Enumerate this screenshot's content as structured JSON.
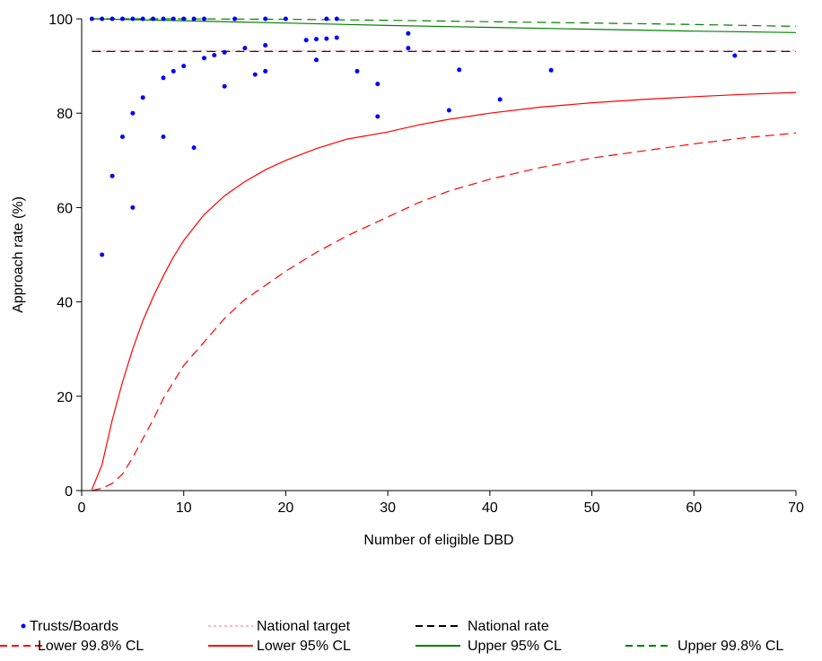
{
  "chart_data": {
    "type": "scatter",
    "xlabel": "Number of eligible DBD",
    "ylabel": "Approach rate (%)",
    "xlim": [
      0,
      70
    ],
    "ylim": [
      0,
      100
    ],
    "x_ticks": [
      0,
      10,
      20,
      30,
      40,
      50,
      60,
      70
    ],
    "y_ticks": [
      0,
      20,
      40,
      60,
      80,
      100
    ],
    "grid": false,
    "legend_position": "bottom",
    "points_series": {
      "name": "Trusts/Boards",
      "color": "#0000ff",
      "points": [
        {
          "x": 1,
          "y": 100
        },
        {
          "x": 2,
          "y": 100
        },
        {
          "x": 3,
          "y": 100
        },
        {
          "x": 4,
          "y": 100
        },
        {
          "x": 5,
          "y": 100
        },
        {
          "x": 6,
          "y": 100
        },
        {
          "x": 7,
          "y": 100
        },
        {
          "x": 8,
          "y": 100
        },
        {
          "x": 9,
          "y": 100
        },
        {
          "x": 10,
          "y": 100
        },
        {
          "x": 11,
          "y": 100
        },
        {
          "x": 12,
          "y": 100
        },
        {
          "x": 15,
          "y": 100
        },
        {
          "x": 18,
          "y": 100
        },
        {
          "x": 20,
          "y": 100
        },
        {
          "x": 24,
          "y": 100
        },
        {
          "x": 25,
          "y": 100
        },
        {
          "x": 2,
          "y": 50
        },
        {
          "x": 3,
          "y": 66.7
        },
        {
          "x": 4,
          "y": 75
        },
        {
          "x": 5,
          "y": 80
        },
        {
          "x": 5,
          "y": 60
        },
        {
          "x": 6,
          "y": 83.3
        },
        {
          "x": 8,
          "y": 87.5
        },
        {
          "x": 8,
          "y": 75
        },
        {
          "x": 9,
          "y": 88.9
        },
        {
          "x": 10,
          "y": 90
        },
        {
          "x": 11,
          "y": 72.7
        },
        {
          "x": 12,
          "y": 91.7
        },
        {
          "x": 13,
          "y": 92.3
        },
        {
          "x": 14,
          "y": 92.9
        },
        {
          "x": 14,
          "y": 85.7
        },
        {
          "x": 16,
          "y": 93.8
        },
        {
          "x": 17,
          "y": 88.2
        },
        {
          "x": 18,
          "y": 88.9
        },
        {
          "x": 18,
          "y": 94.4
        },
        {
          "x": 22,
          "y": 95.5
        },
        {
          "x": 23,
          "y": 95.7
        },
        {
          "x": 23,
          "y": 91.3
        },
        {
          "x": 24,
          "y": 95.8
        },
        {
          "x": 25,
          "y": 96
        },
        {
          "x": 27,
          "y": 88.9
        },
        {
          "x": 29,
          "y": 86.2
        },
        {
          "x": 29,
          "y": 79.3
        },
        {
          "x": 32,
          "y": 96.9
        },
        {
          "x": 32,
          "y": 93.8
        },
        {
          "x": 36,
          "y": 80.6
        },
        {
          "x": 37,
          "y": 89.2
        },
        {
          "x": 41,
          "y": 82.9
        },
        {
          "x": 46,
          "y": 89.1
        },
        {
          "x": 64,
          "y": 92.2
        }
      ]
    },
    "line_series": [
      {
        "name": "National target",
        "color": "#ffb6c1",
        "dash": "dotted",
        "x": [
          1,
          70
        ],
        "y": [
          93.3,
          93.3
        ]
      },
      {
        "name": "National rate",
        "color": "#000000",
        "dash": "dashed",
        "x": [
          1,
          70
        ],
        "y": [
          93.1,
          93.1
        ]
      },
      {
        "name": "Lower 95% CL",
        "color": "#ff0000",
        "dash": "solid",
        "x": [
          1,
          2,
          3,
          4,
          5,
          6,
          7,
          8,
          9,
          10,
          12,
          14,
          16,
          18,
          20,
          23,
          26,
          30,
          33,
          36,
          40,
          45,
          50,
          55,
          60,
          65,
          70
        ],
        "y": [
          0.2,
          5.5,
          15,
          23,
          30,
          36,
          41,
          45.5,
          49.5,
          53,
          58.5,
          62.5,
          65.5,
          68,
          70,
          72.5,
          74.5,
          76,
          77.5,
          78.7,
          80,
          81.3,
          82.2,
          82.9,
          83.5,
          84,
          84.4
        ]
      },
      {
        "name": "Lower 99.8% CL",
        "color": "#ff0000",
        "dash": "dashed",
        "x": [
          1,
          2,
          3,
          4,
          5,
          6,
          7,
          8,
          9,
          10,
          12,
          14,
          16,
          18,
          20,
          23,
          26,
          30,
          33,
          36,
          40,
          45,
          50,
          55,
          60,
          65,
          70
        ],
        "y": [
          0,
          0.5,
          1.5,
          3.5,
          7,
          11,
          15,
          19.5,
          23,
          26.5,
          31.5,
          36.5,
          40.5,
          43.5,
          46.5,
          50.5,
          54,
          58,
          61,
          63.5,
          66,
          68.5,
          70.5,
          72,
          73.5,
          74.8,
          75.8
        ]
      },
      {
        "name": "Upper 95% CL",
        "color": "#008000",
        "dash": "solid",
        "x": [
          1,
          10,
          20,
          30,
          40,
          50,
          60,
          70
        ],
        "y": [
          100,
          99.6,
          99.1,
          98.6,
          98.2,
          97.8,
          97.4,
          97.1
        ]
      },
      {
        "name": "Upper 99.8% CL",
        "color": "#008000",
        "dash": "dashed",
        "x": [
          1,
          10,
          20,
          30,
          40,
          50,
          60,
          70
        ],
        "y": [
          100,
          100,
          99.9,
          99.7,
          99.4,
          99.1,
          98.8,
          98.4
        ]
      }
    ],
    "legend": [
      {
        "label": "Trusts/Boards",
        "marker": "dot",
        "color": "#0000ff"
      },
      {
        "label": "National target",
        "marker": "dotted-line",
        "color": "#ffb6c1"
      },
      {
        "label": "National rate",
        "marker": "dashed-line",
        "color": "#000000"
      },
      {
        "label": "Lower 99.8% CL",
        "marker": "dashed-line",
        "color": "#ff0000"
      },
      {
        "label": "Lower 95% CL",
        "marker": "solid-line",
        "color": "#ff0000"
      },
      {
        "label": "Upper 95% CL",
        "marker": "solid-line",
        "color": "#008000"
      },
      {
        "label": "Upper 99.8% CL",
        "marker": "dashed-line",
        "color": "#008000"
      }
    ]
  }
}
